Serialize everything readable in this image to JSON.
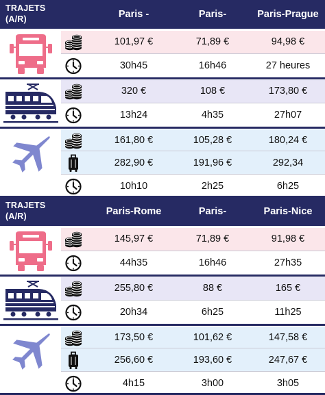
{
  "tables": [
    {
      "header": {
        "trajets": "TRAJETS (A/R)",
        "destinations": [
          "Paris - Barcelone",
          "Paris-Londres",
          "Paris-Prague"
        ]
      },
      "bus": {
        "price": [
          "101,97 €",
          "71,89 €",
          "94,98 €"
        ],
        "time": [
          "30h45",
          "16h46",
          "27 heures"
        ]
      },
      "train": {
        "price": [
          "320 €",
          "108 €",
          "173,80 €"
        ],
        "time": [
          "13h24",
          "4h35",
          "27h07"
        ]
      },
      "plane": {
        "price": [
          "161,80 €",
          "105,28 €",
          "180,24 €"
        ],
        "luggage": [
          "282,90 €",
          "191,96 €",
          "292,34"
        ],
        "time": [
          "10h10",
          "2h25",
          "6h25"
        ]
      }
    },
    {
      "header": {
        "trajets": "TRAJETS (A/R)",
        "destinations": [
          "Paris-Rome",
          "Paris-Marseille",
          "Paris-Nice"
        ]
      },
      "bus": {
        "price": [
          "145,97 €",
          "71,89 €",
          "91,98 €"
        ],
        "time": [
          "44h35",
          "16h46",
          "27h35"
        ]
      },
      "train": {
        "price": [
          "255,80 €",
          "88 €",
          "165 €"
        ],
        "time": [
          "20h34",
          "6h25",
          "11h25"
        ]
      },
      "plane": {
        "price": [
          "173,50 €",
          "101,62 €",
          "147,58 €"
        ],
        "luggage": [
          "256,60 €",
          "193,60 €",
          "247,67 €"
        ],
        "time": [
          "4h15",
          "3h00",
          "3h05"
        ]
      }
    }
  ],
  "icons": {
    "bus": "bus-icon",
    "train": "train-icon",
    "plane": "plane-icon",
    "price": "coins-icon",
    "time": "clock-icon",
    "luggage": "suitcase-icon"
  },
  "colors": {
    "header": "#262a63",
    "bus": "#ee6d89",
    "train": "#262a63",
    "plane": "#7f87cf",
    "bus_row": "#fbe6ea",
    "train_row": "#e8e6f6",
    "plane_row": "#e3f0fb"
  }
}
